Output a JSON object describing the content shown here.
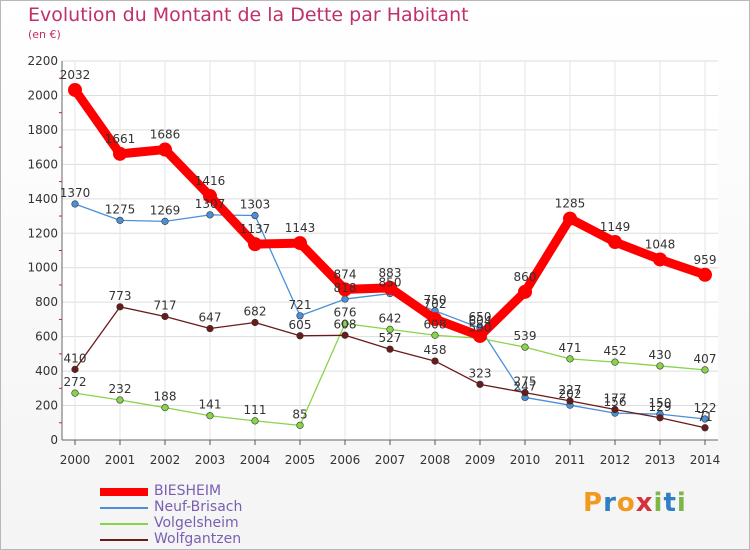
{
  "chart_data": {
    "type": "line",
    "title": "Evolution du Montant de la Dette par Habitant",
    "subtitle": "(en €)",
    "x": [
      "2000",
      "2001",
      "2002",
      "2003",
      "2004",
      "2005",
      "2006",
      "2007",
      "2008",
      "2009",
      "2010",
      "2011",
      "2012",
      "2013",
      "2014"
    ],
    "ylim": [
      0,
      2200
    ],
    "yticks": [
      0,
      200,
      400,
      600,
      800,
      1000,
      1200,
      1400,
      1600,
      1800,
      2000,
      2200
    ],
    "grid": true,
    "legend_position": "bottom-left",
    "series": [
      {
        "name": "BIESHEIM",
        "color": "#ff0000",
        "values": [
          2032,
          1661,
          1686,
          1416,
          1137,
          1143,
          874,
          883,
          702,
          604,
          860,
          1285,
          1149,
          1048,
          959
        ]
      },
      {
        "name": "Neuf-Brisach",
        "color": "#4a90d9",
        "values": [
          1370,
          1275,
          1269,
          1307,
          1303,
          721,
          818,
          850,
          750,
          650,
          247,
          202,
          156,
          150,
          122
        ]
      },
      {
        "name": "Volgelsheim",
        "color": "#88d44a",
        "values": [
          272,
          232,
          188,
          141,
          111,
          85,
          676,
          642,
          608,
          590,
          539,
          471,
          452,
          430,
          407
        ]
      },
      {
        "name": "Wolfgantzen",
        "color": "#6b1a1a",
        "values": [
          410,
          773,
          717,
          647,
          682,
          605,
          608,
          527,
          458,
          323,
          275,
          227,
          177,
          129,
          71
        ]
      }
    ]
  },
  "logo": {
    "letters": [
      "P",
      "r",
      "o",
      "x",
      "i",
      "t",
      "i"
    ],
    "colors": [
      "#f29a1f",
      "#2f7fc4",
      "#f29a1f",
      "#d6303b",
      "#7ab648",
      "#2f7fc4",
      "#7ab648"
    ]
  }
}
